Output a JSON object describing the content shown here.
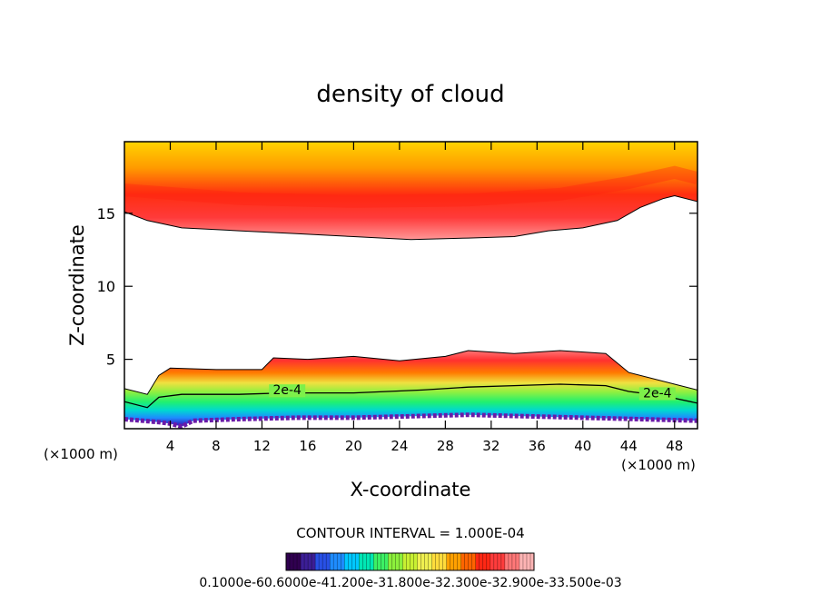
{
  "chart_data": {
    "type": "heatmap",
    "title": "density of cloud",
    "xlabel": "X-coordinate",
    "ylabel": "Z-coordinate",
    "x_unit": "(×1000 m)",
    "x_unit_right": "(×1000 m)",
    "xlim": [
      0,
      50
    ],
    "ylim": [
      0.25,
      19.9
    ],
    "x_ticks": [
      4,
      8,
      12,
      16,
      20,
      24,
      28,
      32,
      36,
      40,
      44,
      48
    ],
    "y_ticks": [
      5,
      10,
      15
    ],
    "contour_interval": "CONTOUR INTERVAL = 1.000E-04",
    "colorbar": {
      "label_text": "0.1000e-60.6000e-41.200e-31.800e-32.300e-32.900e-33.500e-03",
      "colors": [
        "#300050",
        "#3c1e96",
        "#2850e6",
        "#1e8cff",
        "#00c8ff",
        "#00e6b4",
        "#3cf064",
        "#8cf03c",
        "#c8f032",
        "#f0f050",
        "#ffdc3c",
        "#ffa000",
        "#ff6400",
        "#ff2814",
        "#ff3c3c",
        "#ff7878",
        "#ffb4b4"
      ]
    },
    "contour_labels": [
      {
        "text": "2e-4",
        "x": 14.2,
        "z": 2.6
      },
      {
        "text": "2e-4",
        "x": 46.5,
        "z": 2.4
      }
    ],
    "upper_cloud": {
      "top": 19.9,
      "bottom": [
        [
          0,
          15.1
        ],
        [
          2,
          14.5
        ],
        [
          5,
          14.0
        ],
        [
          10,
          13.8
        ],
        [
          15,
          13.6
        ],
        [
          20,
          13.4
        ],
        [
          25,
          13.2
        ],
        [
          30,
          13.3
        ],
        [
          34,
          13.4
        ],
        [
          37,
          13.8
        ],
        [
          40,
          14.0
        ],
        [
          43,
          14.5
        ],
        [
          45,
          15.4
        ],
        [
          47,
          16.0
        ],
        [
          48,
          16.2
        ],
        [
          50,
          15.8
        ]
      ],
      "core": [
        [
          0,
          16.6
        ],
        [
          10,
          16.0
        ],
        [
          20,
          15.8
        ],
        [
          30,
          15.9
        ],
        [
          38,
          16.3
        ],
        [
          44,
          17.1
        ],
        [
          48,
          17.8
        ],
        [
          50,
          17.4
        ]
      ]
    },
    "lower_cloud": {
      "top": [
        [
          0,
          3.0
        ],
        [
          2,
          2.6
        ],
        [
          3,
          3.9
        ],
        [
          4,
          4.4
        ],
        [
          8,
          4.3
        ],
        [
          12,
          4.3
        ],
        [
          13,
          5.1
        ],
        [
          16,
          5.0
        ],
        [
          20,
          5.2
        ],
        [
          24,
          4.9
        ],
        [
          28,
          5.2
        ],
        [
          30,
          5.6
        ],
        [
          34,
          5.4
        ],
        [
          38,
          5.6
        ],
        [
          42,
          5.4
        ],
        [
          44,
          4.1
        ],
        [
          48,
          3.3
        ],
        [
          50,
          2.9
        ]
      ],
      "contour_2e4": [
        [
          0,
          2.1
        ],
        [
          2,
          1.7
        ],
        [
          3,
          2.4
        ],
        [
          5,
          2.6
        ],
        [
          10,
          2.6
        ],
        [
          14,
          2.7
        ],
        [
          20,
          2.7
        ],
        [
          26,
          2.9
        ],
        [
          30,
          3.1
        ],
        [
          34,
          3.2
        ],
        [
          38,
          3.3
        ],
        [
          42,
          3.2
        ],
        [
          44,
          2.8
        ],
        [
          47,
          2.5
        ],
        [
          50,
          2.0
        ]
      ],
      "base": [
        [
          0,
          0.9
        ],
        [
          3,
          0.7
        ],
        [
          4,
          0.6
        ],
        [
          5,
          0.4
        ],
        [
          6,
          0.8
        ],
        [
          10,
          0.9
        ],
        [
          15,
          1.0
        ],
        [
          20,
          1.0
        ],
        [
          25,
          1.1
        ],
        [
          30,
          1.2
        ],
        [
          35,
          1.1
        ],
        [
          40,
          1.0
        ],
        [
          45,
          0.9
        ],
        [
          50,
          0.8
        ]
      ]
    }
  }
}
